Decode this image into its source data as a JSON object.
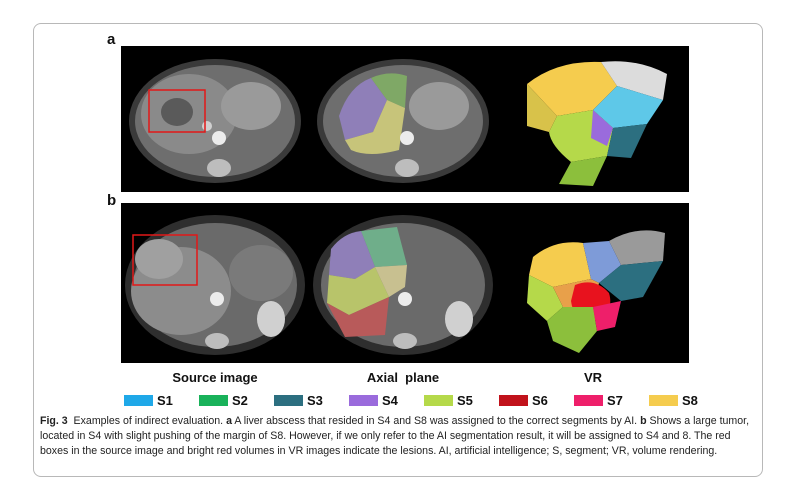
{
  "panels": {
    "a": "a",
    "b": "b"
  },
  "columns": {
    "source": "Source image",
    "axial": "Axial  plane",
    "vr": "VR"
  },
  "legend": [
    {
      "label": "S1",
      "color": "#1fa8e8"
    },
    {
      "label": "S2",
      "color": "#19b25a"
    },
    {
      "label": "S3",
      "color": "#2c6f80"
    },
    {
      "label": "S4",
      "color": "#9a6bdc"
    },
    {
      "label": "S5",
      "color": "#b5d94a"
    },
    {
      "label": "S6",
      "color": "#c1121b"
    },
    {
      "label": "S7",
      "color": "#ee1f6a"
    },
    {
      "label": "S8",
      "color": "#f5cc4e"
    }
  ],
  "caption": {
    "fig": "Fig. 3",
    "intro": "  Examples of indirect evaluation. ",
    "a_marker": "a",
    "a_text": " A liver abscess that resided in S4 and S8 was assigned to the correct segments by AI. ",
    "b_marker": "b",
    "b_text": " Shows a large tumor, located in S4 with slight pushing of the margin of S8. However, if we only refer to the AI segmentation result, it will be assigned to S4 and 8. The red boxes in the source image and bright red volumes in VR images indicate the lesions. AI, artificial intelligence; S, segment; VR, volume rendering."
  }
}
